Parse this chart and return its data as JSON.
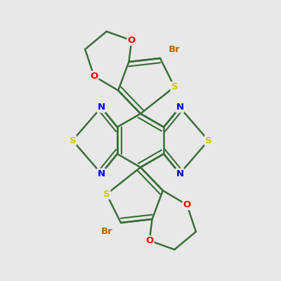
{
  "background_color": "#e8e8e8",
  "bond_color": "#3a6e3a",
  "bond_width": 1.8,
  "atom_colors": {
    "N": "#0000ee",
    "S": "#cccc00",
    "O": "#ff0000",
    "Br": "#bb6600",
    "C": "#3a6e3a"
  },
  "figsize": [
    4.0,
    4.0
  ],
  "dpi": 100
}
